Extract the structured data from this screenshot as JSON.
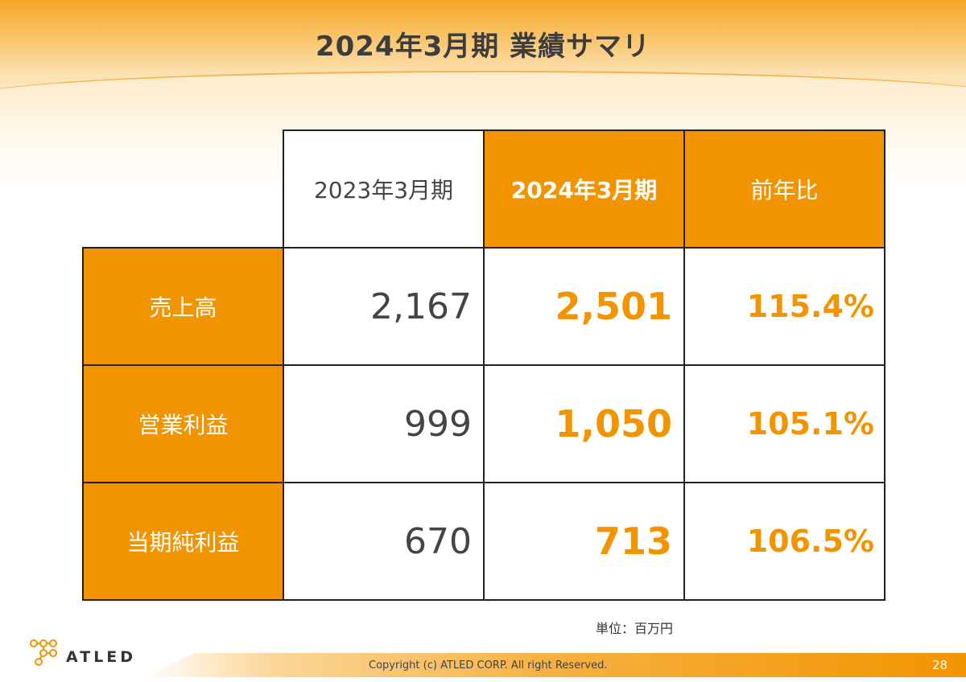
{
  "slide": {
    "title": "2024年3月期 業績サマリ",
    "unit_note": "単位：百万円",
    "page_number": "28",
    "copyright": "Copyright (c)  ATLED CORP. All right Reserved.",
    "logo_text": "ATLED"
  },
  "table": {
    "headers": [
      "2023年3月期",
      "2024年3月期",
      "前年比"
    ],
    "rows": [
      {
        "label": "売上高",
        "prev": "2,167",
        "current": "2,501",
        "ratio": "115.4%"
      },
      {
        "label": "営業利益",
        "prev": "999",
        "current": "1,050",
        "ratio": "105.1%"
      },
      {
        "label": "当期純利益",
        "prev": "670",
        "current": "713",
        "ratio": "106.5%"
      }
    ]
  },
  "colors": {
    "accent": "#f29400",
    "text": "#444444",
    "border": "#222222"
  }
}
